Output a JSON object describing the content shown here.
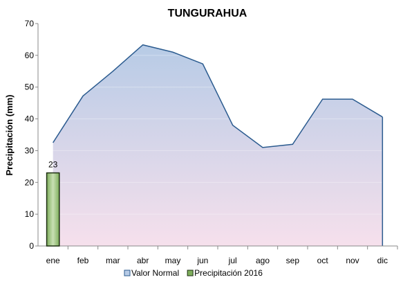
{
  "chart_data": {
    "type": "area_bar",
    "title": "TUNGURAHUA",
    "y_label": "Precipitación (mm)",
    "categories": [
      "ene",
      "feb",
      "mar",
      "abr",
      "may",
      "jun",
      "jul",
      "ago",
      "sep",
      "oct",
      "nov",
      "dic"
    ],
    "series": [
      {
        "name": "Valor Normal",
        "kind": "area",
        "color": "#2b5b8f",
        "fill_top": "#b7cbe6",
        "fill_bottom": "#f6e0ec",
        "values": [
          32.5,
          47.2,
          55,
          63.3,
          61,
          57.3,
          38,
          31,
          32,
          46.2,
          46.2,
          40.6
        ]
      },
      {
        "name": "Precipitación 2016",
        "kind": "bar",
        "color": "#7eae5c",
        "border": "#1c2e10",
        "values": [
          23,
          null,
          null,
          null,
          null,
          null,
          null,
          null,
          null,
          null,
          null,
          null
        ]
      }
    ],
    "ylim": [
      0,
      70
    ],
    "yticks": [
      0,
      10,
      20,
      30,
      40,
      50,
      60,
      70
    ],
    "grid": true,
    "legend": "bottom"
  }
}
